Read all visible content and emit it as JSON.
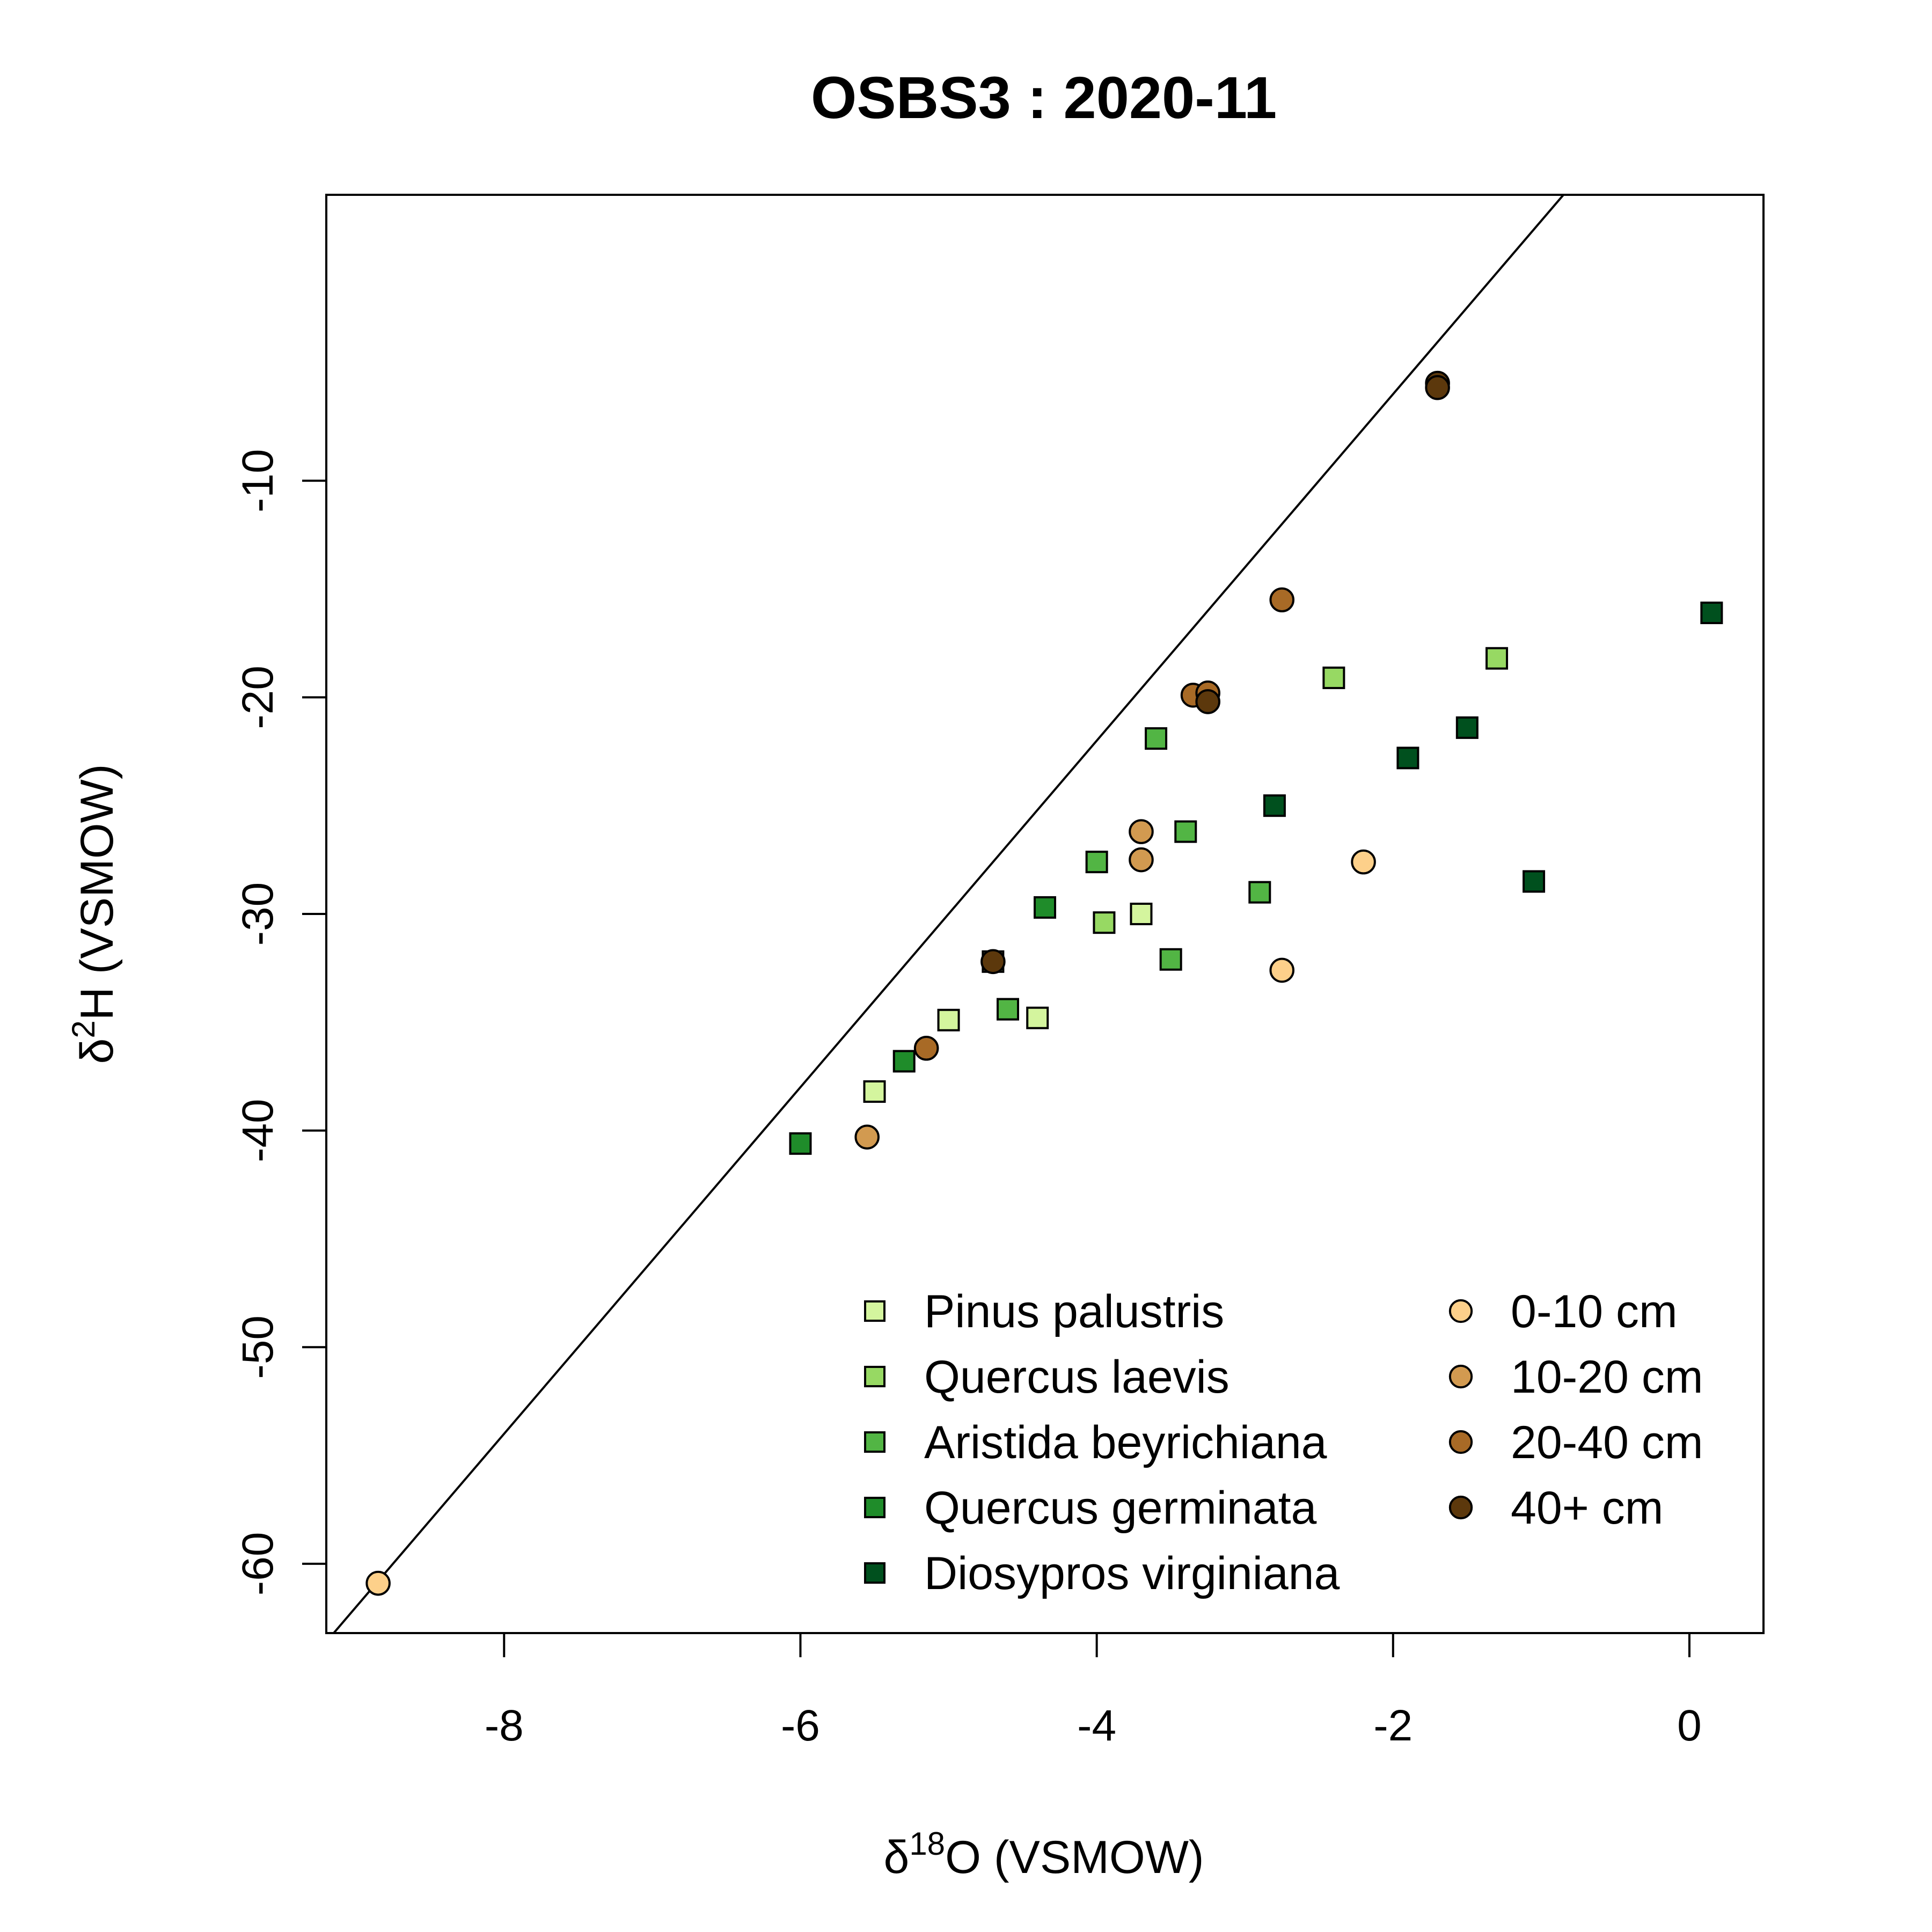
{
  "chart_data": {
    "type": "scatter",
    "title": "OSBS3 : 2020-11",
    "xlabel": {
      "prefix": "δ",
      "sup": "18",
      "rest": "O (VSMOW)"
    },
    "ylabel": {
      "prefix": "δ",
      "sup": "2",
      "rest": "H (VSMOW)"
    },
    "xlim": [
      -9.2,
      0.5
    ],
    "ylim": [
      -63.2,
      3.2
    ],
    "x_ticks": [
      -8,
      -6,
      -4,
      -2,
      0
    ],
    "x_tick_labels": [
      "-8",
      "-6",
      "-4",
      "-2",
      "0"
    ],
    "y_ticks": [
      -60,
      -50,
      -40,
      -30,
      -20,
      -10
    ],
    "y_tick_labels": [
      "-60",
      "-50",
      "-40",
      "-30",
      "-20",
      "-10"
    ],
    "grid": false,
    "legend_position": "bottom-right",
    "reference_line": {
      "slope": 8,
      "intercept": 10
    },
    "species_series": [
      {
        "name": "Pinus palustris",
        "marker": "square",
        "color": "#d4f59e",
        "points": [
          [
            -4.7,
            -32.2
          ],
          [
            -5.0,
            -34.9
          ],
          [
            -4.4,
            -34.8
          ],
          [
            -5.5,
            -38.2
          ],
          [
            -3.7,
            -30.0
          ]
        ]
      },
      {
        "name": "Quercus laevis",
        "marker": "square",
        "color": "#97d963",
        "points": [
          [
            -2.4,
            -19.1
          ],
          [
            -1.3,
            -18.2
          ],
          [
            -3.95,
            -30.4
          ]
        ]
      },
      {
        "name": "Aristida beyrichiana",
        "marker": "square",
        "color": "#52b544",
        "points": [
          [
            -3.6,
            -21.9
          ],
          [
            -4.0,
            -27.6
          ],
          [
            -3.4,
            -26.2
          ],
          [
            -4.6,
            -34.4
          ],
          [
            -3.5,
            -32.1
          ],
          [
            -2.9,
            -29.0
          ]
        ]
      },
      {
        "name": "Quercus germinata",
        "marker": "square",
        "color": "#1f8c2a",
        "points": [
          [
            -4.35,
            -29.7
          ],
          [
            -5.3,
            -36.8
          ],
          [
            -6.0,
            -40.6
          ]
        ]
      },
      {
        "name": "Diosypros virginiana",
        "marker": "square",
        "color": "#00501e",
        "points": [
          [
            0.15,
            -16.1
          ],
          [
            -1.5,
            -21.4
          ],
          [
            -1.9,
            -22.8
          ],
          [
            -2.8,
            -25.0
          ],
          [
            -1.05,
            -28.5
          ]
        ]
      }
    ],
    "depth_series": [
      {
        "name": "0-10 cm",
        "marker": "circle",
        "color": "#fdd08a",
        "points": [
          [
            -8.85,
            -60.9
          ],
          [
            -2.2,
            -27.6
          ],
          [
            -2.75,
            -32.6
          ]
        ]
      },
      {
        "name": "10-20 cm",
        "marker": "circle",
        "color": "#d29a50",
        "points": [
          [
            -3.7,
            -26.2
          ],
          [
            -3.7,
            -27.5
          ],
          [
            -5.55,
            -40.3
          ]
        ]
      },
      {
        "name": "20-40 cm",
        "marker": "circle",
        "color": "#a86a26",
        "points": [
          [
            -2.75,
            -15.5
          ],
          [
            -3.35,
            -19.9
          ],
          [
            -3.25,
            -19.8
          ],
          [
            -5.15,
            -36.2
          ]
        ]
      },
      {
        "name": "40+ cm",
        "marker": "circle",
        "color": "#5c380c",
        "points": [
          [
            -1.7,
            -5.5
          ],
          [
            -1.7,
            -5.7
          ],
          [
            -3.25,
            -20.2
          ],
          [
            -4.7,
            -32.2
          ]
        ]
      }
    ]
  }
}
